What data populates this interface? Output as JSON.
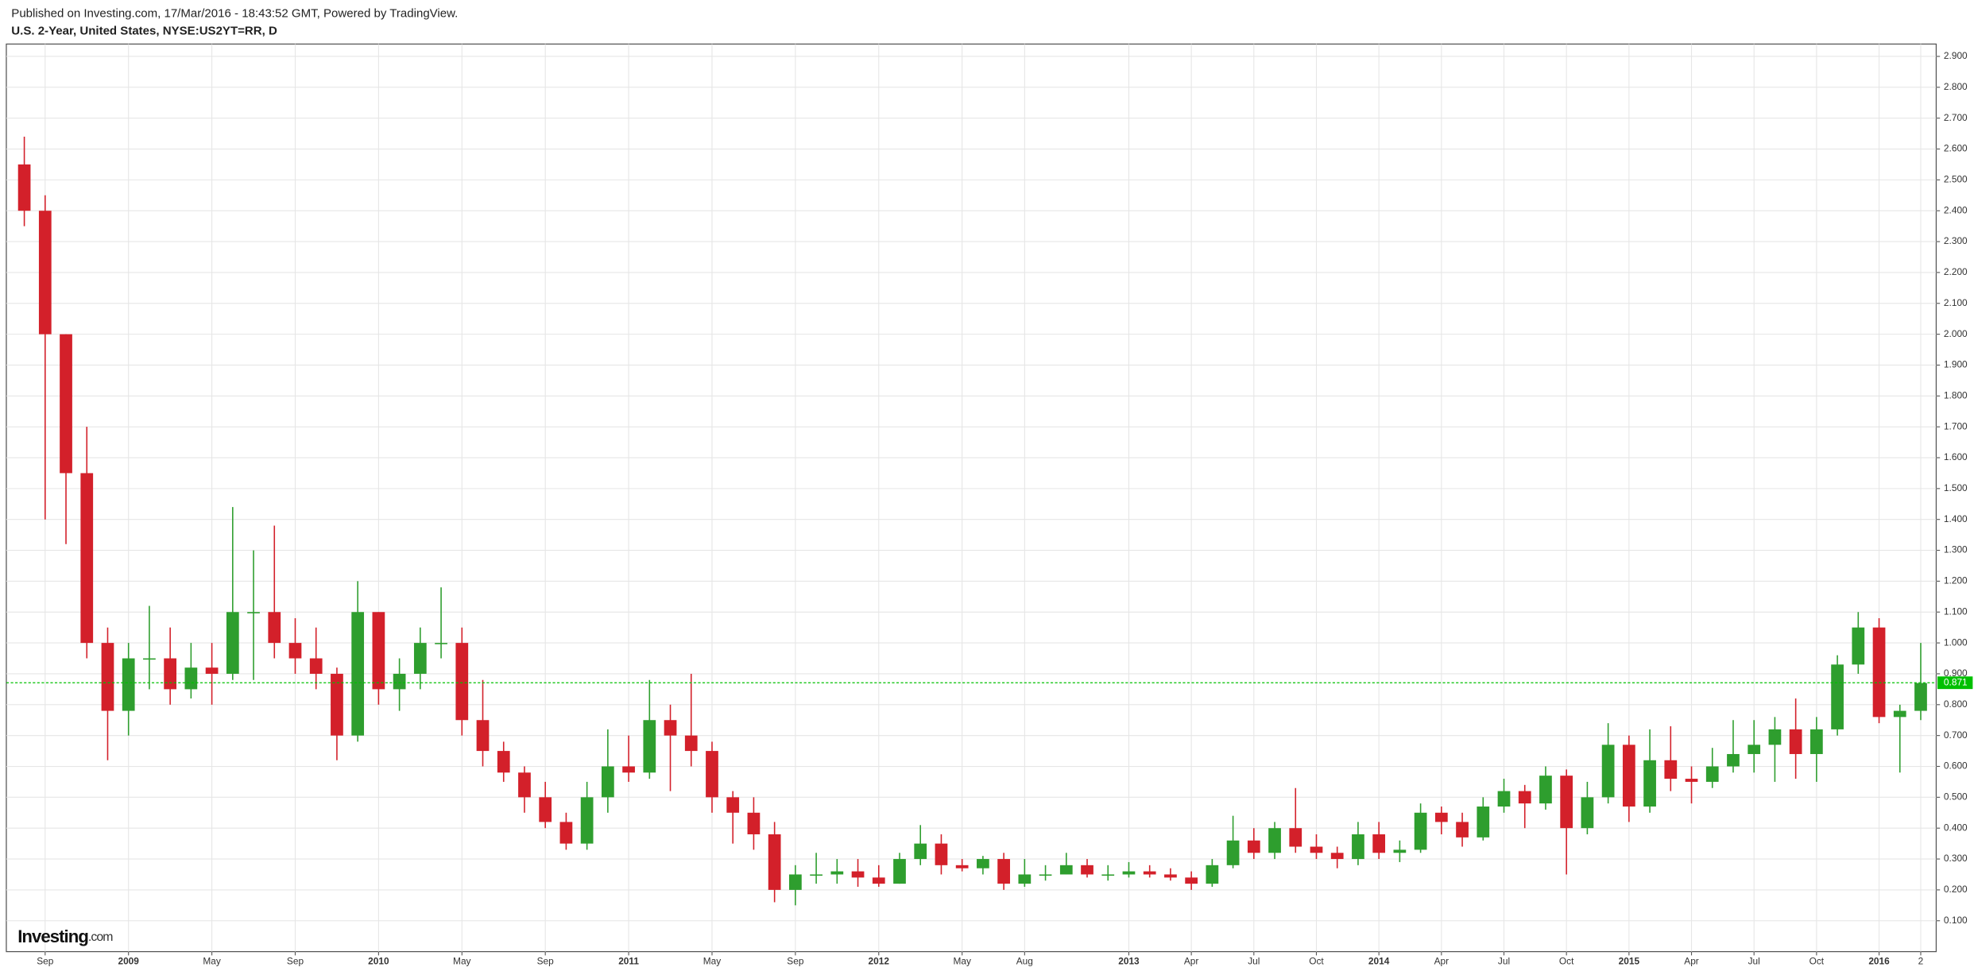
{
  "chart_data": {
    "type": "candlestick",
    "published": "Published on Investing.com, 17/Mar/2016 - 18:43:52 GMT, Powered by TradingView.",
    "title": "U.S. 2-Year, United States, NYSE:US2YT=RR, D",
    "logo": "Investing",
    "logo_suffix": ".com",
    "up_color": "#2e9e2e",
    "down_color": "#d3202a",
    "grid": true,
    "categories": [
      null,
      "Sep",
      null,
      null,
      null,
      "2009",
      null,
      null,
      null,
      "May",
      null,
      null,
      null,
      "Sep",
      null,
      null,
      null,
      "2010",
      null,
      null,
      null,
      "May",
      null,
      null,
      null,
      "Sep",
      null,
      null,
      null,
      "2011",
      null,
      null,
      null,
      "May",
      null,
      null,
      null,
      "Sep",
      null,
      null,
      null,
      "2012",
      null,
      null,
      null,
      "May",
      null,
      null,
      "Aug",
      null,
      null,
      null,
      null,
      "2013",
      null,
      null,
      "Apr",
      null,
      null,
      "Jul",
      null,
      null,
      "Oct",
      null,
      null,
      "2014",
      null,
      null,
      "Apr",
      null,
      null,
      "Jul",
      null,
      null,
      "Oct",
      null,
      null,
      "2015",
      null,
      null,
      "Apr",
      null,
      null,
      "Jul",
      null,
      null,
      "Oct",
      null,
      null,
      "2016",
      null,
      "2"
    ],
    "open": [
      2.55,
      2.4,
      2.0,
      1.55,
      1.0,
      0.78,
      0.95,
      0.95,
      0.85,
      0.92,
      0.9,
      1.1,
      1.1,
      1.0,
      0.95,
      0.9,
      0.7,
      1.1,
      0.85,
      0.9,
      1.0,
      1.0,
      0.75,
      0.65,
      0.58,
      0.5,
      0.42,
      0.35,
      0.5,
      0.6,
      0.58,
      0.75,
      0.7,
      0.65,
      0.5,
      0.45,
      0.38,
      0.2,
      0.25,
      0.25,
      0.26,
      0.24,
      0.22,
      0.3,
      0.35,
      0.28,
      0.27,
      0.3,
      0.22,
      0.25,
      0.25,
      0.28,
      0.25,
      0.25,
      0.26,
      0.25,
      0.24,
      0.22,
      0.28,
      0.36,
      0.32,
      0.4,
      0.34,
      0.32,
      0.3,
      0.38,
      0.32,
      0.33,
      0.45,
      0.42,
      0.37,
      0.47,
      0.52,
      0.48,
      0.57,
      0.4,
      0.5,
      0.67,
      0.47,
      0.62,
      0.56,
      0.55,
      0.6,
      0.64,
      0.67,
      0.72,
      0.64,
      0.72,
      0.93,
      1.05,
      0.76,
      0.78
    ],
    "high": [
      2.64,
      2.45,
      2.0,
      1.7,
      1.05,
      1.0,
      1.12,
      1.05,
      1.0,
      1.0,
      1.44,
      1.3,
      1.38,
      1.08,
      1.05,
      0.92,
      1.2,
      1.1,
      0.95,
      1.05,
      1.18,
      1.05,
      0.88,
      0.68,
      0.6,
      0.55,
      0.45,
      0.55,
      0.72,
      0.7,
      0.88,
      0.8,
      0.9,
      0.68,
      0.52,
      0.5,
      0.42,
      0.28,
      0.32,
      0.3,
      0.3,
      0.28,
      0.32,
      0.41,
      0.38,
      0.3,
      0.31,
      0.32,
      0.3,
      0.28,
      0.32,
      0.3,
      0.28,
      0.29,
      0.28,
      0.27,
      0.26,
      0.3,
      0.44,
      0.4,
      0.42,
      0.53,
      0.38,
      0.34,
      0.42,
      0.42,
      0.36,
      0.48,
      0.47,
      0.45,
      0.5,
      0.56,
      0.54,
      0.6,
      0.59,
      0.55,
      0.74,
      0.7,
      0.72,
      0.73,
      0.6,
      0.66,
      0.75,
      0.75,
      0.76,
      0.82,
      0.76,
      0.96,
      1.1,
      1.08,
      0.8,
      1.0
    ],
    "low": [
      2.35,
      1.4,
      1.32,
      0.95,
      0.62,
      0.7,
      0.85,
      0.8,
      0.82,
      0.8,
      0.88,
      0.88,
      0.95,
      0.9,
      0.85,
      0.62,
      0.68,
      0.8,
      0.78,
      0.85,
      0.95,
      0.7,
      0.6,
      0.55,
      0.45,
      0.4,
      0.33,
      0.33,
      0.45,
      0.55,
      0.56,
      0.52,
      0.6,
      0.45,
      0.35,
      0.33,
      0.16,
      0.15,
      0.22,
      0.22,
      0.21,
      0.21,
      0.22,
      0.28,
      0.25,
      0.26,
      0.25,
      0.2,
      0.21,
      0.23,
      0.25,
      0.24,
      0.23,
      0.24,
      0.24,
      0.23,
      0.2,
      0.21,
      0.27,
      0.3,
      0.3,
      0.32,
      0.3,
      0.27,
      0.28,
      0.3,
      0.29,
      0.32,
      0.38,
      0.34,
      0.36,
      0.45,
      0.4,
      0.46,
      0.25,
      0.38,
      0.48,
      0.42,
      0.45,
      0.52,
      0.48,
      0.53,
      0.58,
      0.58,
      0.55,
      0.56,
      0.55,
      0.7,
      0.9,
      0.74,
      0.58,
      0.75
    ],
    "close": [
      2.4,
      2.0,
      1.55,
      1.0,
      0.78,
      0.95,
      0.95,
      0.85,
      0.92,
      0.9,
      1.1,
      1.1,
      1.0,
      0.95,
      0.9,
      0.7,
      1.1,
      0.85,
      0.9,
      1.0,
      1.0,
      0.75,
      0.65,
      0.58,
      0.5,
      0.42,
      0.35,
      0.5,
      0.6,
      0.58,
      0.75,
      0.7,
      0.65,
      0.5,
      0.45,
      0.38,
      0.2,
      0.25,
      0.25,
      0.26,
      0.24,
      0.22,
      0.3,
      0.35,
      0.28,
      0.27,
      0.3,
      0.22,
      0.25,
      0.25,
      0.28,
      0.25,
      0.25,
      0.26,
      0.25,
      0.24,
      0.22,
      0.28,
      0.36,
      0.32,
      0.4,
      0.34,
      0.32,
      0.3,
      0.38,
      0.32,
      0.33,
      0.45,
      0.42,
      0.37,
      0.47,
      0.52,
      0.48,
      0.57,
      0.4,
      0.5,
      0.67,
      0.47,
      0.62,
      0.56,
      0.55,
      0.6,
      0.64,
      0.67,
      0.72,
      0.64,
      0.72,
      0.93,
      1.05,
      0.76,
      0.78,
      0.87
    ],
    "last_price": {
      "value": 0.871,
      "label": "0.871"
    },
    "last_price_color": "#00c000",
    "ylim": [
      0,
      2.94
    ],
    "yticks": [
      {
        "value": 0.1,
        "label": "0.100"
      },
      {
        "value": 0.2,
        "label": "0.200"
      },
      {
        "value": 0.3,
        "label": "0.300"
      },
      {
        "value": 0.4,
        "label": "0.400"
      },
      {
        "value": 0.5,
        "label": "0.500"
      },
      {
        "value": 0.6,
        "label": "0.600"
      },
      {
        "value": 0.7,
        "label": "0.700"
      },
      {
        "value": 0.8,
        "label": "0.800"
      },
      {
        "value": 0.9,
        "label": "0.900"
      },
      {
        "value": 1.0,
        "label": "1.000"
      },
      {
        "value": 1.1,
        "label": "1.100"
      },
      {
        "value": 1.2,
        "label": "1.200"
      },
      {
        "value": 1.3,
        "label": "1.300"
      },
      {
        "value": 1.4,
        "label": "1.400"
      },
      {
        "value": 1.5,
        "label": "1.500"
      },
      {
        "value": 1.6,
        "label": "1.600"
      },
      {
        "value": 1.7,
        "label": "1.700"
      },
      {
        "value": 1.8,
        "label": "1.800"
      },
      {
        "value": 1.9,
        "label": "1.900"
      },
      {
        "value": 2.0,
        "label": "2.000"
      },
      {
        "value": 2.1,
        "label": "2.100"
      },
      {
        "value": 2.2,
        "label": "2.200"
      },
      {
        "value": 2.3,
        "label": "2.300"
      },
      {
        "value": 2.4,
        "label": "2.400"
      },
      {
        "value": 2.5,
        "label": "2.500"
      },
      {
        "value": 2.6,
        "label": "2.600"
      },
      {
        "value": 2.7,
        "label": "2.700"
      },
      {
        "value": 2.8,
        "label": "2.800"
      },
      {
        "value": 2.9,
        "label": "2.900"
      }
    ]
  }
}
